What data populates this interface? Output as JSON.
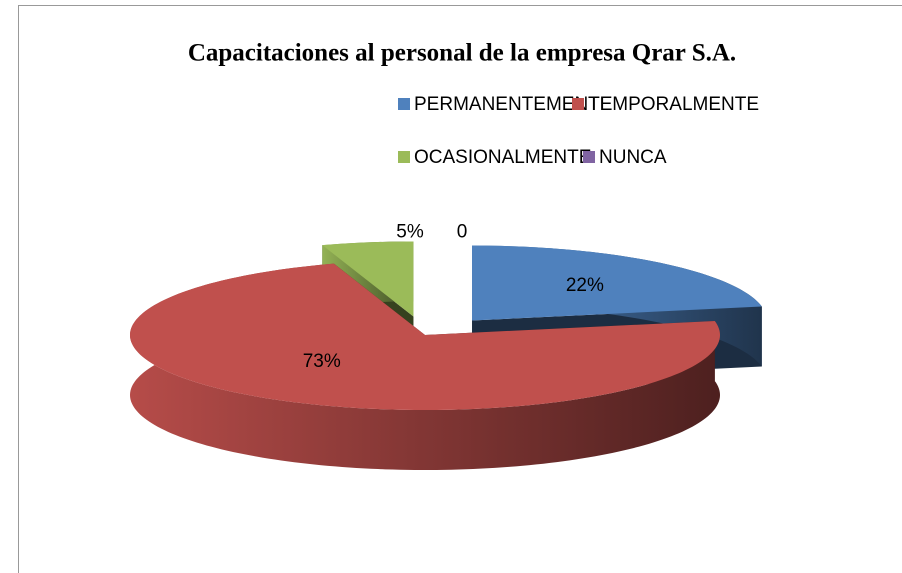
{
  "chart_data": {
    "type": "pie",
    "title": "Capacitaciones al personal de la empresa Qrar S.A.",
    "categories": [
      "PERMANENTEMENTE",
      "TEMPORALMENTE",
      "OCASIONALMENTE",
      "NUNCA"
    ],
    "values": [
      22,
      73,
      5,
      0
    ],
    "value_labels": [
      "22%",
      "73%",
      "5%",
      "0"
    ],
    "colors": [
      "#4f81bd",
      "#c0504d",
      "#9bbb59",
      "#8064a2"
    ],
    "legend": "top"
  }
}
